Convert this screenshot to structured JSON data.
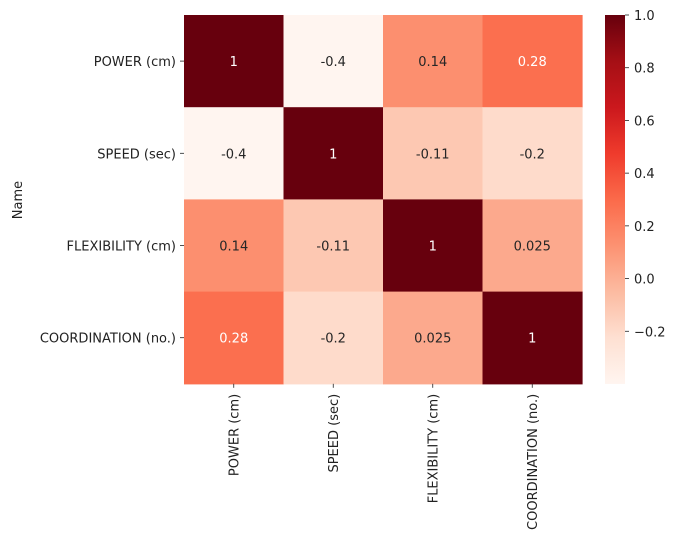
{
  "chart_data": {
    "type": "heatmap",
    "title": "",
    "ylabel": "Name",
    "xlabel": "",
    "rows": [
      "POWER (cm)",
      "SPEED (sec)",
      "FLEXIBILITY (cm)",
      "COORDINATION (no.)"
    ],
    "columns": [
      "POWER (cm)",
      "SPEED (sec)",
      "FLEXIBILITY (cm)",
      "COORDINATION (no.)"
    ],
    "values": [
      [
        1,
        -0.4,
        0.14,
        0.28
      ],
      [
        -0.4,
        1,
        -0.11,
        -0.2
      ],
      [
        0.14,
        -0.11,
        1,
        0.025
      ],
      [
        0.28,
        -0.2,
        0.025,
        1
      ]
    ],
    "annotations": [
      [
        "1",
        "-0.4",
        "0.14",
        "0.28"
      ],
      [
        "-0.4",
        "1",
        "-0.11",
        "-0.2"
      ],
      [
        "0.14",
        "-0.11",
        "1",
        "0.025"
      ],
      [
        "0.28",
        "-0.2",
        "0.025",
        "1"
      ]
    ],
    "colormap": "Reds",
    "vmin": -0.4,
    "vmax": 1.0,
    "colorbar_ticks": [
      1.0,
      0.8,
      0.6,
      0.4,
      0.2,
      0.0,
      -0.2
    ],
    "colorbar_tick_labels": [
      "1.0",
      "0.8",
      "0.6",
      "0.4",
      "0.2",
      "0.0",
      "−0.2"
    ],
    "colors": {
      "reds_scale": [
        "#fff5f0",
        "#fee0d2",
        "#fcbba1",
        "#fc9272",
        "#fb6a4a",
        "#ef3b2c",
        "#cb181d",
        "#a50f15",
        "#67000d"
      ],
      "text_dark": "#262626",
      "text_light": "#ffffff"
    }
  }
}
